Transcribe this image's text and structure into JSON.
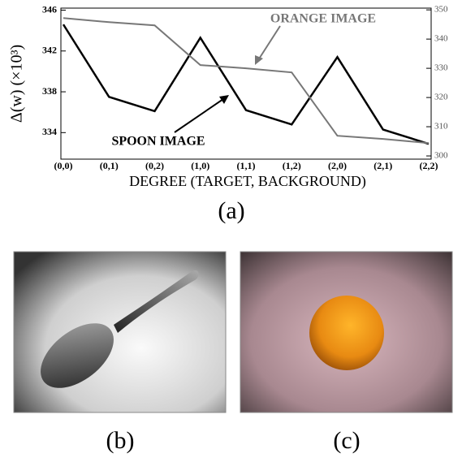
{
  "chart_data": {
    "type": "line",
    "y_label": "Δ(w) (×10³)",
    "x_label": "DEGREE (TARGET, BACKGROUND)",
    "annotations": [
      "ORANGE IMAGE",
      "SPOON IMAGE"
    ],
    "categories": [
      "(0,0)",
      "(0,1)",
      "(0,2)",
      "(1,0)",
      "(1,1)",
      "(1,2)",
      "(2,0)",
      "(2,1)",
      "(2,2)"
    ],
    "series": [
      {
        "name": "SPOON IMAGE",
        "color": "#000000",
        "values": [
          344.6,
          337.5,
          336.1,
          343.3,
          336.2,
          334.8,
          341.4,
          334.3,
          332.9
        ]
      },
      {
        "name": "ORANGE IMAGE",
        "color": "#777777",
        "axis": "y2",
        "values": [
          347.2,
          345.8,
          344.7,
          331.1,
          330.0,
          328.6,
          306.9,
          305.8,
          304.4
        ]
      }
    ],
    "ylim": [
      331.4,
      346.2
    ],
    "yticks": [
      334,
      338,
      342,
      346
    ],
    "y2lim": [
      298.9,
      350.6
    ],
    "y2ticks": [
      300,
      310,
      320,
      330,
      340,
      350
    ]
  },
  "panels": [
    "(a)",
    "(b)",
    "(c)"
  ]
}
